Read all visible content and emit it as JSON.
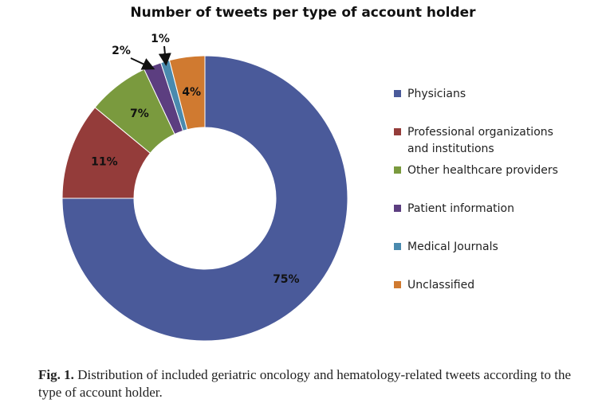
{
  "chart_data": {
    "type": "pie",
    "title": "Number of tweets per type of account holder",
    "donut": true,
    "categories": [
      "Physicians",
      "Professional organizations\nand institutions",
      "Other healthcare providers",
      "Patient information",
      "Medical Journals",
      "Unclassified"
    ],
    "values": [
      75,
      11,
      7,
      2,
      1,
      4
    ],
    "data_labels": [
      "75%",
      "11%",
      "7%",
      "2%",
      "1%",
      "4%"
    ],
    "colors": [
      "#4A5A9A",
      "#943C3A",
      "#7A9A3E",
      "#5C3E80",
      "#4A8AAE",
      "#D07A30"
    ],
    "legend": "right"
  },
  "caption": {
    "label": "Fig. 1.",
    "text": "Distribution of included geriatric oncology and hematology-related tweets according to the type of account holder."
  }
}
